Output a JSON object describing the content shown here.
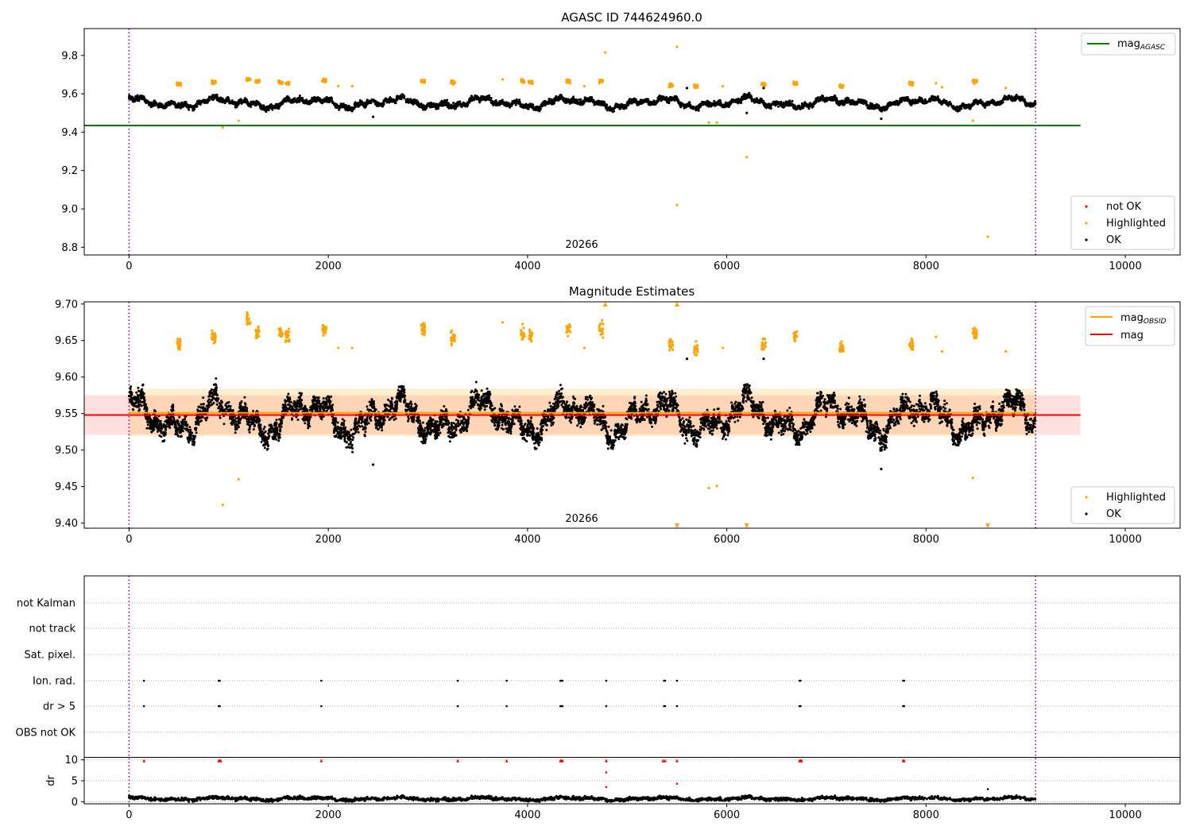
{
  "chart_data": [
    {
      "type": "scatter",
      "title": "AGASC ID 744624960.0",
      "xlabel": "",
      "ylabel": "",
      "xlim": [
        -450,
        10550
      ],
      "ylim": [
        8.76,
        9.94
      ],
      "xticks": [
        0,
        2000,
        4000,
        6000,
        8000,
        10000
      ],
      "yticks": [
        8.8,
        9.0,
        9.2,
        9.4,
        9.6,
        9.8
      ],
      "ytick_labels": [
        "8.8",
        "9.0",
        "9.2",
        "9.4",
        "9.6",
        "9.8"
      ],
      "vlines": [
        0,
        9100
      ],
      "hlines": [
        {
          "name": "mag_AGASC",
          "y": 9.435,
          "x": [
            -450,
            9550
          ],
          "color": "#008000"
        }
      ],
      "annotation": {
        "text": "20266",
        "x": 4550
      },
      "ok_band": {
        "center": 9.553,
        "amp": 0.035,
        "noise": 0.012,
        "count": 5200
      },
      "series": [
        {
          "name": "not OK",
          "color": "#ff0000",
          "points": []
        },
        {
          "name": "Highlighted",
          "color": "#ffa500",
          "points": [
            [
              940,
              9.425
            ],
            [
              1100,
              9.46
            ],
            [
              4780,
              9.815
            ],
            [
              5500,
              9.845
            ],
            [
              5500,
              9.02
            ],
            [
              5820,
              9.45
            ],
            [
              5900,
              9.45
            ],
            [
              6200,
              9.27
            ],
            [
              8470,
              9.46
            ],
            [
              8620,
              8.855
            ],
            [
              2100,
              9.64
            ],
            [
              2240,
              9.64
            ],
            [
              3750,
              9.675
            ],
            [
              4570,
              9.64
            ],
            [
              5960,
              9.64
            ],
            [
              8100,
              9.655
            ],
            [
              8160,
              9.635
            ],
            [
              8800,
              9.63
            ]
          ]
        },
        {
          "name": "OK",
          "color": "#000000",
          "points": [
            [
              7550,
              9.47
            ],
            [
              2450,
              9.48
            ],
            [
              6200,
              9.5
            ],
            [
              5600,
              9.63
            ],
            [
              6370,
              9.63
            ]
          ]
        }
      ],
      "highlight_clusters": [
        [
          500,
          9.65
        ],
        [
          850,
          9.66
        ],
        [
          1200,
          9.675
        ],
        [
          1290,
          9.665
        ],
        [
          1520,
          9.66
        ],
        [
          1590,
          9.655
        ],
        [
          1960,
          9.67
        ],
        [
          2950,
          9.665
        ],
        [
          3250,
          9.66
        ],
        [
          3950,
          9.665
        ],
        [
          4030,
          9.66
        ],
        [
          4410,
          9.665
        ],
        [
          4740,
          9.665
        ],
        [
          5440,
          9.645
        ],
        [
          5690,
          9.64
        ],
        [
          6370,
          9.65
        ],
        [
          6690,
          9.655
        ],
        [
          7150,
          9.64
        ],
        [
          7850,
          9.655
        ],
        [
          8490,
          9.665
        ]
      ],
      "legend": {
        "placement": "top-right",
        "entries": [
          {
            "label": "mag",
            "sub": "AGASC",
            "color": "#008000"
          }
        ]
      },
      "legend2": {
        "placement": "bottom-right",
        "entries": [
          {
            "label": "not OK",
            "color": "#ff0000"
          },
          {
            "label": "Highlighted",
            "color": "#ffa500"
          },
          {
            "label": "OK",
            "color": "#000000"
          }
        ]
      }
    },
    {
      "type": "scatter",
      "title": "Magnitude Estimates",
      "xlabel": "",
      "ylabel": "",
      "xlim": [
        -450,
        10550
      ],
      "ylim": [
        9.393,
        9.703
      ],
      "xticks": [
        0,
        2000,
        4000,
        6000,
        8000,
        10000
      ],
      "yticks": [
        9.4,
        9.45,
        9.5,
        9.55,
        9.6,
        9.65,
        9.7
      ],
      "ytick_labels": [
        "9.40",
        "9.45",
        "9.50",
        "9.55",
        "9.60",
        "9.65",
        "9.70"
      ],
      "vlines": [
        0,
        9100
      ],
      "hlines": [
        {
          "name": "mag",
          "y": 9.548,
          "x": [
            -450,
            9550
          ],
          "color": "#ff0000"
        },
        {
          "name": "mag_OBSID",
          "y": 9.551,
          "x": [
            0,
            9100
          ],
          "color": "#ffa500"
        }
      ],
      "bands": [
        {
          "y": [
            9.521,
            9.575
          ],
          "x": [
            -450,
            9550
          ],
          "color": "#ff0000",
          "opacity": 0.12
        },
        {
          "y": [
            9.519,
            9.584
          ],
          "x": [
            0,
            9100
          ],
          "color": "#ffa500",
          "opacity": 0.18
        }
      ],
      "annotation": {
        "text": "20266",
        "x": 4550
      },
      "ok_band": {
        "center": 9.545,
        "amp": 0.035,
        "noise": 0.013,
        "count": 6200
      },
      "series": [
        {
          "name": "Highlighted",
          "color": "#ffa500",
          "points": [
            [
              940,
              9.425
            ],
            [
              1100,
              9.46
            ],
            [
              5820,
              9.448
            ],
            [
              5900,
              9.451
            ],
            [
              8470,
              9.462
            ],
            [
              2100,
              9.64
            ],
            [
              2240,
              9.64
            ],
            [
              3750,
              9.675
            ],
            [
              4570,
              9.64
            ],
            [
              5960,
              9.64
            ],
            [
              8100,
              9.655
            ],
            [
              8160,
              9.635
            ],
            [
              8800,
              9.635
            ]
          ]
        },
        {
          "name": "OK",
          "color": "#000000",
          "points": [
            [
              7550,
              9.474
            ],
            [
              2450,
              9.48
            ],
            [
              5600,
              9.625
            ],
            [
              6370,
              9.625
            ]
          ]
        }
      ],
      "out_of_range": {
        "top": [
          4780,
          5500
        ],
        "bottom": [
          5500,
          6200,
          8620
        ]
      },
      "highlight_clusters": [
        [
          500,
          9.645
        ],
        [
          850,
          9.655
        ],
        [
          1200,
          9.68
        ],
        [
          1290,
          9.66
        ],
        [
          1520,
          9.66
        ],
        [
          1590,
          9.655
        ],
        [
          1960,
          9.665
        ],
        [
          2950,
          9.665
        ],
        [
          3250,
          9.655
        ],
        [
          3950,
          9.66
        ],
        [
          4030,
          9.655
        ],
        [
          4410,
          9.665
        ],
        [
          4740,
          9.665
        ],
        [
          5440,
          9.645
        ],
        [
          5690,
          9.64
        ],
        [
          6370,
          9.645
        ],
        [
          6690,
          9.655
        ],
        [
          7150,
          9.64
        ],
        [
          7850,
          9.645
        ],
        [
          8490,
          9.66
        ]
      ],
      "legend": {
        "placement": "top-right",
        "entries": [
          {
            "label": "mag",
            "sub": "OBSID",
            "color": "#ffa500"
          },
          {
            "label": "mag",
            "sub": "",
            "color": "#ff0000"
          }
        ]
      },
      "legend2": {
        "placement": "bottom-right",
        "entries": [
          {
            "label": "Highlighted",
            "color": "#ffa500"
          },
          {
            "label": "OK",
            "color": "#000000"
          }
        ]
      }
    },
    {
      "type": "scatter",
      "title": "",
      "xlim": [
        -450,
        10550
      ],
      "xticks": [
        0,
        2000,
        4000,
        6000,
        8000,
        10000
      ],
      "vlines": [
        0,
        9100
      ],
      "flags": [
        "not Kalman",
        "not track",
        "Sat. pixel.",
        "Ion. rad.",
        "dr > 5",
        "OBS not OK"
      ],
      "flag_events": {
        "Ion. rad.": [
          150,
          900,
          910,
          1930,
          3300,
          3790,
          4330,
          4340,
          4350,
          4790,
          5370,
          5380,
          5500,
          6730,
          6740,
          7770,
          7780
        ],
        "dr > 5": [
          150,
          900,
          910,
          1930,
          3300,
          3790,
          4330,
          4340,
          4350,
          4790,
          5370,
          5380,
          5500,
          6730,
          6740,
          7770,
          7780
        ]
      },
      "dr_axis": {
        "ylabel": "dr",
        "ylim": [
          -0.5,
          10.5
        ],
        "yticks": [
          0,
          5,
          10
        ],
        "ytick_labels": [
          "0",
          "5",
          "10"
        ]
      },
      "dr_clipped": [
        150,
        900,
        910,
        920,
        1930,
        3300,
        3790,
        4330,
        4340,
        4350,
        4790,
        5360,
        5380,
        5500,
        6730,
        6740,
        6750,
        7770,
        7780
      ],
      "dr_outliers": [
        [
          4790,
          7.0
        ],
        [
          4790,
          3.5
        ],
        [
          5500,
          4.3
        ],
        [
          8620,
          3.0
        ]
      ]
    }
  ]
}
